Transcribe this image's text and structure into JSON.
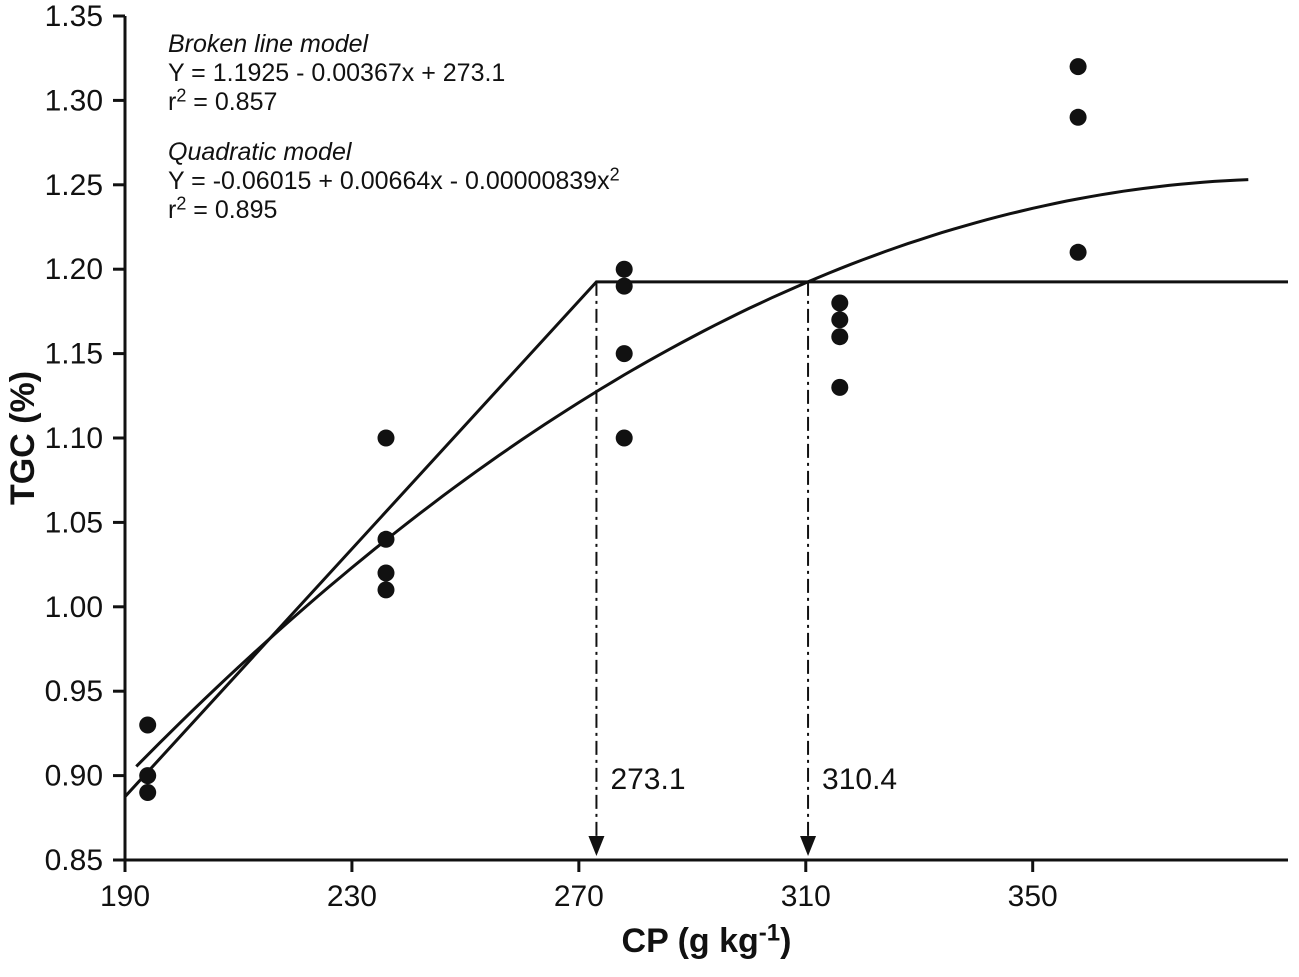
{
  "figure": {
    "background": "#ffffff",
    "ink_color": "#111111"
  },
  "chart_data": {
    "type": "scatter",
    "title": "",
    "xlabel": "CP (g kg⁻¹)",
    "ylabel": "TGC (%)",
    "xlim": [
      190,
      395
    ],
    "ylim": [
      0.85,
      1.35
    ],
    "grid": false,
    "legend_position": "none",
    "xticks": [
      {
        "value": 190,
        "label": "190"
      },
      {
        "value": 230,
        "label": "230"
      },
      {
        "value": 270,
        "label": "270"
      },
      {
        "value": 310,
        "label": "310"
      },
      {
        "value": 350,
        "label": "350"
      }
    ],
    "yticks": [
      {
        "value": 0.85,
        "label": "0.85"
      },
      {
        "value": 0.9,
        "label": "0.90"
      },
      {
        "value": 0.95,
        "label": "0.95"
      },
      {
        "value": 1.0,
        "label": "1.00"
      },
      {
        "value": 1.05,
        "label": "1.05"
      },
      {
        "value": 1.1,
        "label": "1.10"
      },
      {
        "value": 1.15,
        "label": "1.15"
      },
      {
        "value": 1.2,
        "label": "1.20"
      },
      {
        "value": 1.25,
        "label": "1.25"
      },
      {
        "value": 1.3,
        "label": "1.30"
      },
      {
        "value": 1.35,
        "label": "1.35"
      }
    ],
    "points": [
      [
        194,
        0.93
      ],
      [
        194,
        0.9
      ],
      [
        194,
        0.89
      ],
      [
        236,
        1.1
      ],
      [
        236,
        1.04
      ],
      [
        236,
        1.02
      ],
      [
        236,
        1.01
      ],
      [
        278,
        1.2
      ],
      [
        278,
        1.19
      ],
      [
        278,
        1.15
      ],
      [
        278,
        1.1
      ],
      [
        316,
        1.18
      ],
      [
        316,
        1.17
      ],
      [
        316,
        1.16
      ],
      [
        316,
        1.13
      ],
      [
        358,
        1.32
      ],
      [
        358,
        1.29
      ],
      [
        358,
        1.21
      ]
    ],
    "broken_line_model": {
      "plateau": 1.1925,
      "breakpoint": 273.1,
      "slope": 0.00367
    },
    "quadratic_model": {
      "intercept": -0.06015,
      "linear": 0.00664,
      "quadratic": -8.39e-06,
      "x_start": 192,
      "x_end": 388
    },
    "breakpoint_arrows": [
      {
        "x": 273.1,
        "label": "273.1"
      },
      {
        "x": 310.4,
        "label": "310.4"
      }
    ],
    "model_annotations": [
      {
        "name": "Broken line model",
        "equation": "Y = 1.1925 - 0.00367x + 273.1",
        "r_squared": "r² = 0.857"
      },
      {
        "name": "Quadratic model",
        "equation": "Y = -0.06015 + 0.00664x - 0.00000839x²",
        "r_squared": "r² = 0.895"
      }
    ]
  }
}
